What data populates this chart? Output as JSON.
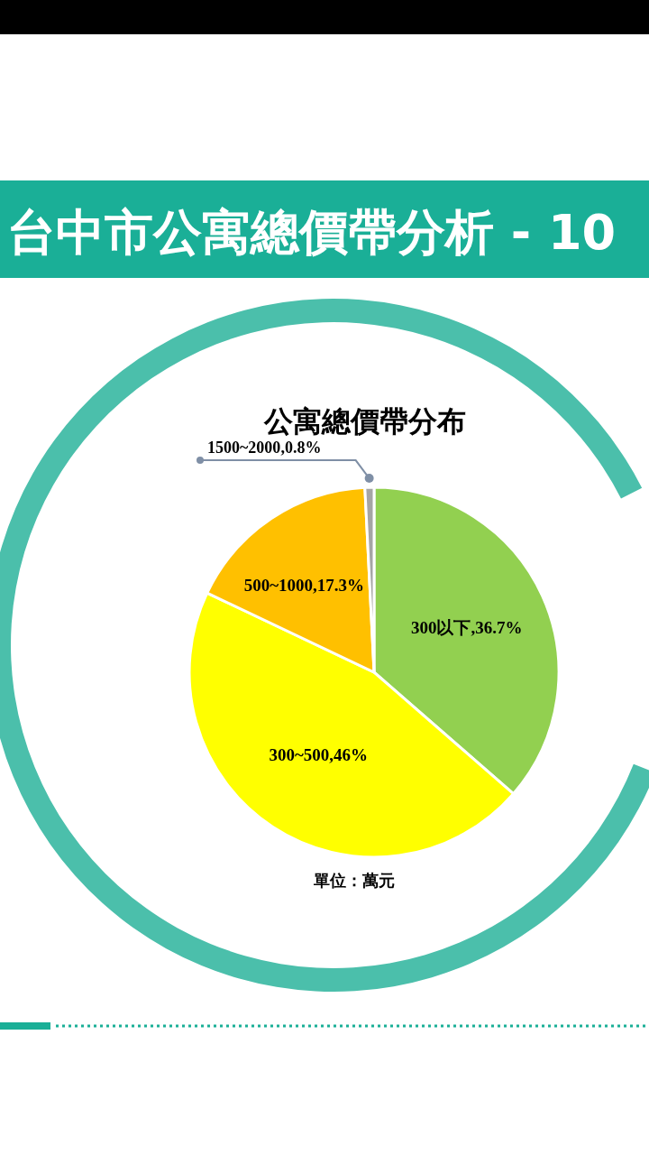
{
  "chart_data": {
    "type": "pie",
    "title": "台中市公寓總價帶分析 - 10",
    "subtitle": "公寓總價帶分布",
    "categories": [
      "300以下",
      "300~500",
      "500~1000",
      "1500~2000"
    ],
    "values": [
      36.7,
      46,
      17.3,
      0.8
    ],
    "colors": [
      "#92d050",
      "#ffff00",
      "#ffc000",
      "#a5a5a5"
    ],
    "value_labels": [
      ",36.7%",
      ",46%",
      ",17.3%",
      ",0.8%"
    ],
    "annotations": [
      "單位：萬元"
    ]
  }
}
